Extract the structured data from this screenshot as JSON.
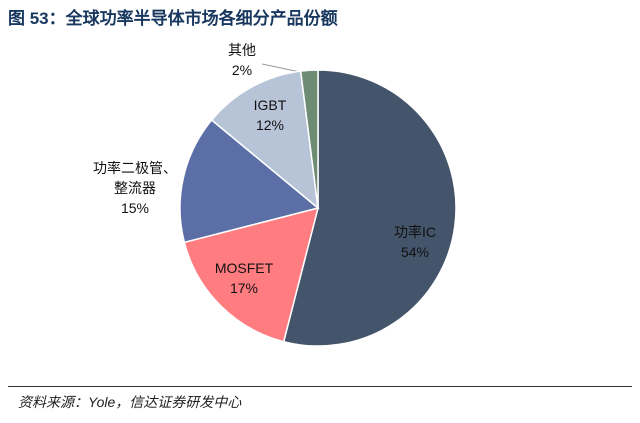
{
  "chart_data": {
    "type": "pie",
    "title": "图 53：全球功率半导体市场各细分产品份额",
    "source": "资料来源：Yole，信达证券研发中心",
    "categories": [
      "功率IC",
      "MOSFET",
      "功率二极管、整流器",
      "IGBT",
      "其他"
    ],
    "values": [
      54,
      17,
      15,
      12,
      2
    ],
    "value_labels": [
      "54%",
      "17%",
      "15%",
      "12%",
      "2%"
    ],
    "colors": [
      "#44546a",
      "#ff7c80",
      "#5b6ea6",
      "#b7c4d8",
      "#6e8b74"
    ]
  }
}
